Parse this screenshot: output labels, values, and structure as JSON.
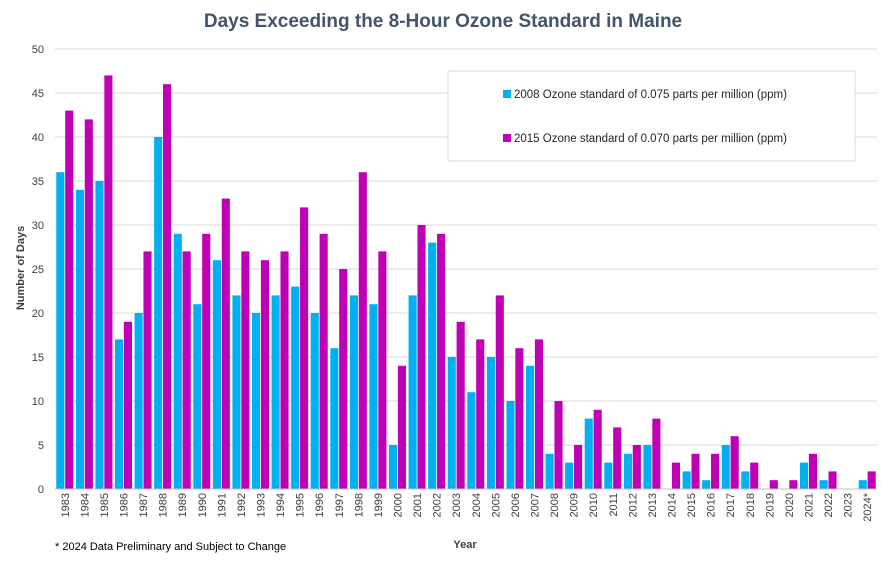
{
  "chart_data": {
    "type": "bar",
    "title": "Days Exceeding the 8-Hour Ozone Standard in Maine",
    "xlabel": "Year",
    "ylabel": "Number of Days",
    "ylim": [
      0,
      50
    ],
    "yticks": [
      0,
      5,
      10,
      15,
      20,
      25,
      30,
      35,
      40,
      45,
      50
    ],
    "grid": true,
    "legend_position": "top-right",
    "categories": [
      "1983",
      "1984",
      "1985",
      "1986",
      "1987",
      "1988",
      "1989",
      "1990",
      "1991",
      "1992",
      "1993",
      "1994",
      "1995",
      "1996",
      "1997",
      "1998",
      "1999",
      "2000",
      "2001",
      "2002",
      "2003",
      "2004",
      "2005",
      "2006",
      "2007",
      "2008",
      "2009",
      "2010",
      "2011",
      "2012",
      "2013",
      "2014",
      "2015",
      "2016",
      "2017",
      "2018",
      "2019",
      "2020",
      "2021",
      "2022",
      "2023",
      "2024*"
    ],
    "series": [
      {
        "name": "2008 Ozone standard of 0.075 parts per million (ppm)",
        "color": "#00b0f0",
        "values": [
          36,
          34,
          35,
          17,
          20,
          40,
          29,
          21,
          26,
          22,
          20,
          22,
          23,
          20,
          16,
          22,
          21,
          5,
          22,
          28,
          15,
          11,
          15,
          10,
          14,
          4,
          3,
          8,
          3,
          4,
          5,
          0,
          2,
          1,
          5,
          2,
          0,
          0,
          3,
          1,
          0,
          1
        ]
      },
      {
        "name": "2015 Ozone standard of 0.070 parts per million (ppm)",
        "color": "#c000b4",
        "values": [
          43,
          42,
          47,
          19,
          27,
          46,
          27,
          29,
          33,
          27,
          26,
          27,
          32,
          29,
          25,
          36,
          27,
          14,
          30,
          29,
          19,
          17,
          22,
          16,
          17,
          10,
          5,
          9,
          7,
          5,
          8,
          3,
          4,
          4,
          6,
          3,
          1,
          1,
          4,
          2,
          0,
          2
        ]
      }
    ],
    "footnote": "* 2024 Data Preliminary and Subject to Change"
  }
}
